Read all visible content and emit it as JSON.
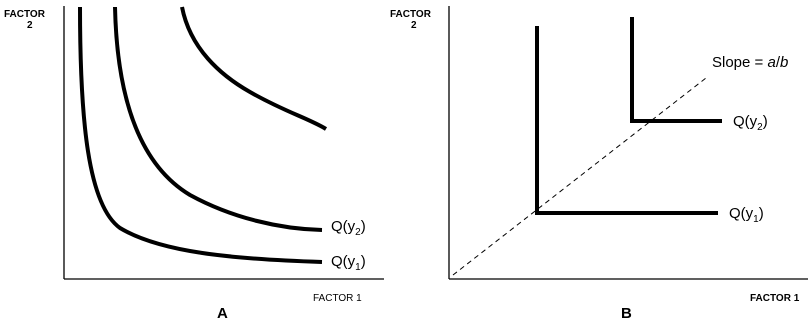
{
  "panel_a": {
    "y_axis_label_line1": "FACTOR",
    "y_axis_label_line2": "2",
    "x_axis_label": "FACTOR 1",
    "panel_letter": "A",
    "curve_label_y2": "Q(y2)",
    "curve_label_y1": "Q(y1)"
  },
  "panel_b": {
    "y_axis_label_line1": "FACTOR",
    "y_axis_label_line2": "2",
    "x_axis_label": "FACTOR 1",
    "panel_letter": "B",
    "slope_label": "Slope = a/b",
    "curve_label_y2": "Q(y2)",
    "curve_label_y1": "Q(y1)"
  },
  "colors": {
    "ink": "#000000",
    "background": "#ffffff"
  }
}
